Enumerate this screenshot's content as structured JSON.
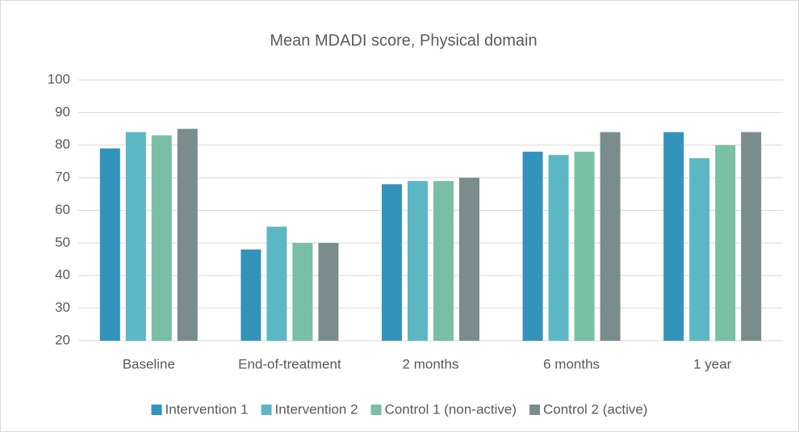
{
  "chart_data": {
    "type": "bar",
    "title": "Mean MDADI score, Physical domain",
    "categories": [
      "Baseline",
      "End-of-treatment",
      "2 months",
      "6 months",
      "1 year"
    ],
    "series": [
      {
        "name": "Intervention 1",
        "color": "#3393bb",
        "values": [
          79,
          48,
          68,
          78,
          84
        ]
      },
      {
        "name": "Intervention 2",
        "color": "#5bb7c4",
        "values": [
          84,
          55,
          69,
          77,
          76
        ]
      },
      {
        "name": "Control 1 (non-active)",
        "color": "#78bfa6",
        "values": [
          83,
          50,
          69,
          78,
          80
        ]
      },
      {
        "name": "Control 2 (active)",
        "color": "#7a8c8c",
        "values": [
          85,
          50,
          70,
          84,
          84
        ]
      }
    ],
    "ylim": [
      20,
      100
    ],
    "yticks": [
      20,
      30,
      40,
      50,
      60,
      70,
      80,
      90,
      100
    ],
    "grid": true,
    "legend": "bottom"
  }
}
